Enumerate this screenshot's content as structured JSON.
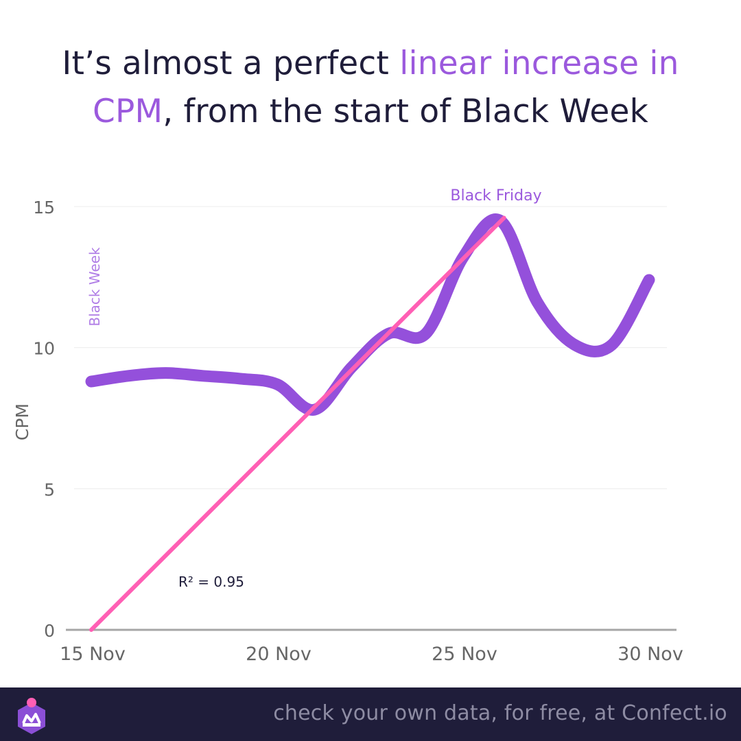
{
  "headline": {
    "part1": "It’s almost a perfect ",
    "highlight1": "linear increase in",
    "highlight2": "CPM",
    "part2": ", from the start of Black Week"
  },
  "colors": {
    "text_dark": "#1f1d3a",
    "highlight": "#9b59dd",
    "series_line": "#9450db",
    "trend_line": "#ff5fb4",
    "axis_text": "#666666",
    "footer_bg": "#1f1d3a",
    "footer_text": "#8e8ca3"
  },
  "chart_data": {
    "type": "line",
    "title": "",
    "xlabel": "",
    "ylabel": "CPM",
    "xlim": [
      15,
      30
    ],
    "ylim": [
      0,
      15
    ],
    "x_ticks": [
      {
        "value": 15,
        "label": "15 Nov"
      },
      {
        "value": 20,
        "label": "20 Nov"
      },
      {
        "value": 25,
        "label": "25 Nov"
      },
      {
        "value": 30,
        "label": "30 Nov"
      }
    ],
    "y_ticks": [
      0,
      5,
      10,
      15
    ],
    "grid": true,
    "series": [
      {
        "name": "",
        "x": [
          15,
          16,
          17,
          18,
          19,
          20,
          21,
          22,
          23,
          24,
          25,
          26,
          27,
          28,
          29,
          30
        ],
        "values": [
          8.8,
          9.0,
          9.1,
          9.0,
          8.9,
          8.7,
          7.8,
          9.3,
          10.5,
          10.5,
          13.2,
          14.5,
          11.6,
          10.1,
          10.1,
          12.4
        ]
      }
    ],
    "trendline": {
      "label": "R² = 0.95",
      "x": [
        15,
        26.1
      ],
      "y": [
        0,
        14.6
      ]
    },
    "annotations": [
      {
        "text": "Black Friday",
        "x": 26,
        "y": 15
      },
      {
        "text": "Black Week",
        "x": 15,
        "y": 12
      }
    ]
  },
  "footer": {
    "text": "check your own data, for free, at Confect.io",
    "logo_icon": "crown-logo-icon"
  }
}
